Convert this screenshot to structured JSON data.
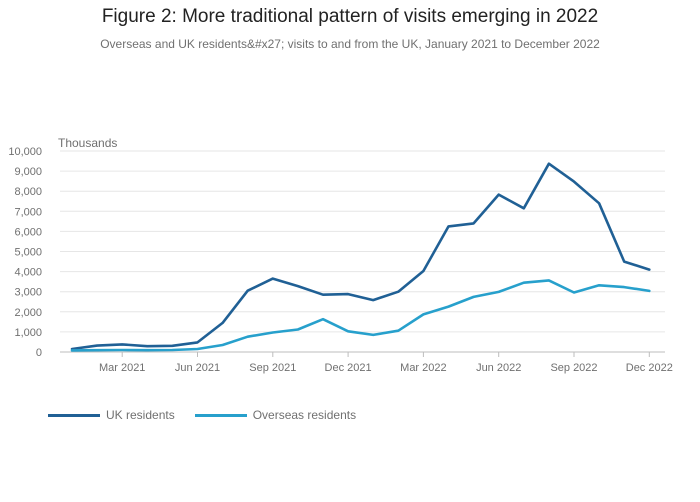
{
  "chart_data": {
    "type": "line",
    "title": "Figure 2: More traditional pattern of visits emerging in 2022",
    "subtitle": "Overseas and UK residents&#x27; visits to and from the UK, January 2021 to December 2022",
    "ylabel": "Thousands",
    "xlabel": "",
    "ylim": [
      0,
      10000
    ],
    "yticks": [
      0,
      1000,
      2000,
      3000,
      4000,
      5000,
      6000,
      7000,
      8000,
      9000,
      10000
    ],
    "ytick_labels": [
      "0",
      "1,000",
      "2,000",
      "3,000",
      "4,000",
      "5,000",
      "6,000",
      "7,000",
      "8,000",
      "9,000",
      "10,000"
    ],
    "x": [
      "Jan 2021",
      "Feb 2021",
      "Mar 2021",
      "Apr 2021",
      "May 2021",
      "Jun 2021",
      "Jul 2021",
      "Aug 2021",
      "Sep 2021",
      "Oct 2021",
      "Nov 2021",
      "Dec 2021",
      "Jan 2022",
      "Feb 2022",
      "Mar 2022",
      "Apr 2022",
      "May 2022",
      "Jun 2022",
      "Jul 2022",
      "Aug 2022",
      "Sep 2022",
      "Oct 2022",
      "Nov 2022",
      "Dec 2022"
    ],
    "xtick_labels": [
      "Mar 2021",
      "Jun 2021",
      "Sep 2021",
      "Dec 2021",
      "Mar 2022",
      "Jun 2022",
      "Sep 2022",
      "Dec 2022"
    ],
    "xtick_indices": [
      2,
      5,
      8,
      11,
      14,
      17,
      20,
      23
    ],
    "series": [
      {
        "name": "UK residents",
        "color": "#206095",
        "values": [
          150,
          320,
          380,
          290,
          310,
          480,
          1450,
          3050,
          3650,
          3280,
          2850,
          2880,
          2580,
          3000,
          4030,
          6250,
          6400,
          7830,
          7150,
          9370,
          8480,
          7400,
          4500,
          4100
        ]
      },
      {
        "name": "Overseas residents",
        "color": "#27a0cc",
        "values": [
          80,
          90,
          100,
          90,
          100,
          150,
          350,
          760,
          970,
          1120,
          1630,
          1030,
          850,
          1060,
          1870,
          2260,
          2740,
          2990,
          3450,
          3560,
          2960,
          3320,
          3230,
          3040
        ]
      }
    ],
    "grid": true,
    "legend": "bottom-left"
  }
}
